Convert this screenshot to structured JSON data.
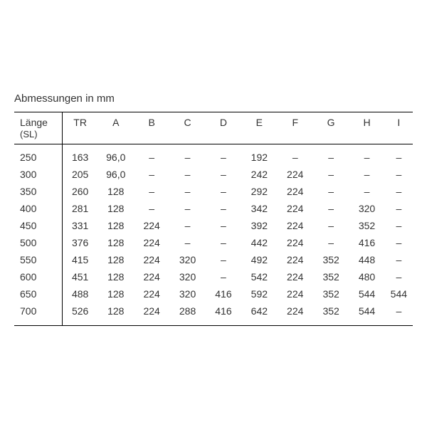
{
  "title": "Abmessungen in mm",
  "table": {
    "type": "table",
    "background_color": "#ffffff",
    "border_color": "#000000",
    "text_color": "#333333",
    "font_family": "Arial, Helvetica, sans-serif",
    "font_size_pt": 10,
    "columns": [
      {
        "label": "Länge",
        "sublabel": "(SL)",
        "align": "left"
      },
      {
        "label": "TR",
        "align": "center"
      },
      {
        "label": "A",
        "align": "center"
      },
      {
        "label": "B",
        "align": "center"
      },
      {
        "label": "C",
        "align": "center"
      },
      {
        "label": "D",
        "align": "center"
      },
      {
        "label": "E",
        "align": "center"
      },
      {
        "label": "F",
        "align": "center"
      },
      {
        "label": "G",
        "align": "center"
      },
      {
        "label": "H",
        "align": "center"
      },
      {
        "label": "I",
        "align": "center"
      }
    ],
    "rows": [
      [
        "250",
        "163",
        "96,0",
        "–",
        "–",
        "–",
        "192",
        "–",
        "–",
        "–",
        "–"
      ],
      [
        "300",
        "205",
        "96,0",
        "–",
        "–",
        "–",
        "242",
        "224",
        "–",
        "–",
        "–"
      ],
      [
        "350",
        "260",
        "128",
        "–",
        "–",
        "–",
        "292",
        "224",
        "–",
        "–",
        "–"
      ],
      [
        "400",
        "281",
        "128",
        "–",
        "–",
        "–",
        "342",
        "224",
        "–",
        "320",
        "–"
      ],
      [
        "450",
        "331",
        "128",
        "224",
        "–",
        "–",
        "392",
        "224",
        "–",
        "352",
        "–"
      ],
      [
        "500",
        "376",
        "128",
        "224",
        "–",
        "–",
        "442",
        "224",
        "–",
        "416",
        "–"
      ],
      [
        "550",
        "415",
        "128",
        "224",
        "320",
        "–",
        "492",
        "224",
        "352",
        "448",
        "–"
      ],
      [
        "600",
        "451",
        "128",
        "224",
        "320",
        "–",
        "542",
        "224",
        "352",
        "480",
        "–"
      ],
      [
        "650",
        "488",
        "128",
        "224",
        "320",
        "416",
        "592",
        "224",
        "352",
        "544",
        "544"
      ],
      [
        "700",
        "526",
        "128",
        "224",
        "288",
        "416",
        "642",
        "224",
        "352",
        "544",
        "–"
      ]
    ]
  }
}
